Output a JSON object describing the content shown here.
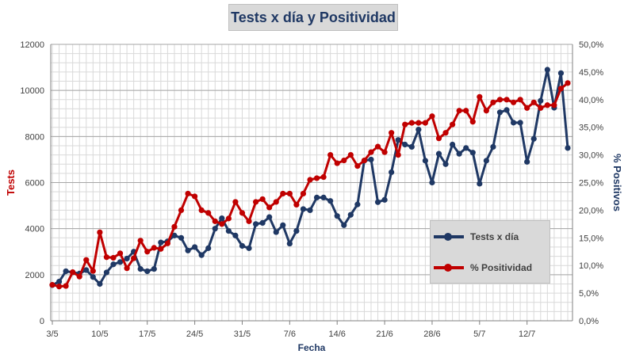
{
  "chart_data": {
    "type": "line",
    "title": "Tests x día y Positividad",
    "xlabel": "Fecha",
    "ylabel": "Tests",
    "y2label": "% Positivos",
    "ylim": [
      0,
      12000
    ],
    "y2lim": [
      0,
      50
    ],
    "yticks": [
      "0",
      "2000",
      "4000",
      "6000",
      "8000",
      "10000",
      "12000"
    ],
    "y2ticks": [
      "0,0%",
      "5,0%",
      "10,0%",
      "15,0%",
      "20,0%",
      "25,0%",
      "30,0%",
      "35,0%",
      "40,0%",
      "45,0%",
      "50,0%"
    ],
    "xticks": [
      {
        "index": 0,
        "label": "3/5"
      },
      {
        "index": 7,
        "label": "10/5"
      },
      {
        "index": 14,
        "label": "17/5"
      },
      {
        "index": 21,
        "label": "24/5"
      },
      {
        "index": 28,
        "label": "31/5"
      },
      {
        "index": 35,
        "label": "7/6"
      },
      {
        "index": 42,
        "label": "14/6"
      },
      {
        "index": 49,
        "label": "21/6"
      },
      {
        "index": 56,
        "label": "28/6"
      },
      {
        "index": 63,
        "label": "5/7"
      },
      {
        "index": 70,
        "label": "12/7"
      }
    ],
    "grid": true,
    "legend_position": "bottom-right",
    "series": [
      {
        "name": "Tests x día",
        "axis": "left",
        "color": "#1f3864",
        "values": [
          1550,
          1700,
          2150,
          2100,
          2050,
          2200,
          1900,
          1600,
          2100,
          2450,
          2550,
          2700,
          3000,
          2250,
          2150,
          2250,
          3400,
          3450,
          3700,
          3600,
          3050,
          3200,
          2850,
          3150,
          4000,
          4450,
          3900,
          3700,
          3250,
          3150,
          4200,
          4250,
          4500,
          3850,
          4150,
          3350,
          3900,
          4850,
          4800,
          5350,
          5350,
          5200,
          4550,
          4150,
          4600,
          5050,
          6950,
          7000,
          5150,
          5250,
          6450,
          7850,
          7650,
          7550,
          8300,
          6950,
          6000,
          7250,
          6800,
          7650,
          7250,
          7500,
          7300,
          5950,
          6950,
          7550,
          9050,
          9150,
          8600,
          8600,
          6900,
          7900,
          9550,
          10900,
          9250,
          10750,
          7500
        ]
      },
      {
        "name": "% Positividad",
        "axis": "right",
        "color": "#c00000",
        "values": [
          6.5,
          6.2,
          6.3,
          8.8,
          8.0,
          11.0,
          9.0,
          16.0,
          11.5,
          11.4,
          12.2,
          9.5,
          11.3,
          14.5,
          12.5,
          13.2,
          13.0,
          14.0,
          17.0,
          20.0,
          23.0,
          22.5,
          20.0,
          19.5,
          18.0,
          17.5,
          18.5,
          21.5,
          19.5,
          18.0,
          21.5,
          22.0,
          20.5,
          21.5,
          23.0,
          23.0,
          21.0,
          23.0,
          25.5,
          25.8,
          26.0,
          30.0,
          28.5,
          29.0,
          30.0,
          28.0,
          29.0,
          30.5,
          31.5,
          30.5,
          34.0,
          30.0,
          35.5,
          35.8,
          35.8,
          35.8,
          37.0,
          33.0,
          34.0,
          35.5,
          38.0,
          38.0,
          36.0,
          40.5,
          38.0,
          39.5,
          40.0,
          40.0,
          39.5,
          40.0,
          38.5,
          39.5,
          38.5,
          39.0,
          39.0,
          42.0,
          43.0
        ]
      }
    ]
  }
}
